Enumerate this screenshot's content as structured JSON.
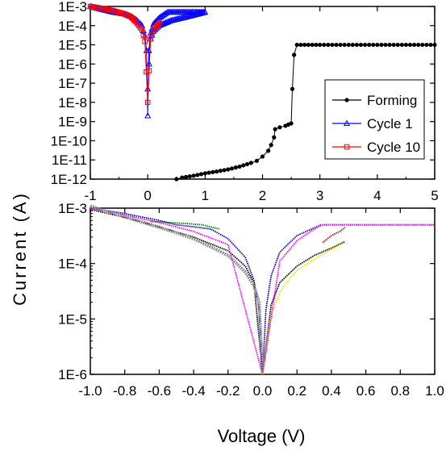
{
  "ylabel": "Current (A)",
  "xlabel": "Voltage (V)",
  "chart_data": [
    {
      "type": "line",
      "panel": "top",
      "ylabel": "Current (A)",
      "xlim": [
        -1,
        5
      ],
      "ylim": [
        1e-12,
        0.001
      ],
      "yscale": "log",
      "xticks": [
        "-1",
        "0",
        "1",
        "2",
        "3",
        "4",
        "5"
      ],
      "yticks": [
        "1E-12",
        "1E-11",
        "1E-10",
        "1E-9",
        "1E-8",
        "1E-7",
        "1E-6",
        "1E-5",
        "1E-4",
        "1E-3"
      ],
      "legend_position": "center-right",
      "series": [
        {
          "name": "Forming",
          "color": "#000000",
          "marker": "filled-circle",
          "x": [
            0.5,
            0.6,
            0.8,
            1.0,
            1.2,
            1.4,
            1.6,
            1.8,
            1.9,
            2.0,
            2.1,
            2.15,
            2.2,
            2.22,
            2.3,
            2.4,
            2.45,
            2.5,
            2.52,
            2.55,
            2.6,
            2.8,
            3.0,
            3.5,
            4.0,
            4.5,
            5.0
          ],
          "y": [
            1e-12,
            1.2e-12,
            1.5e-12,
            2e-12,
            2.5e-12,
            3.2e-12,
            4.5e-12,
            7e-12,
            9e-12,
            1.5e-11,
            3e-11,
            6e-11,
            1.5e-10,
            4e-10,
            5e-10,
            6e-10,
            7e-10,
            8e-10,
            5e-08,
            3e-06,
            1e-05,
            1e-05,
            1e-05,
            1e-05,
            1e-05,
            1e-05,
            1e-05
          ]
        },
        {
          "name": "Cycle 1",
          "color": "#0000ff",
          "marker": "open-triangle",
          "x": [
            -1.0,
            -0.8,
            -0.6,
            -0.4,
            -0.3,
            -0.2,
            -0.1,
            -0.05,
            -0.02,
            0.0,
            0.02,
            0.05,
            0.1,
            0.2,
            0.3,
            0.35,
            0.4,
            0.5,
            0.7,
            1.0,
            0.8,
            0.6,
            0.4,
            0.2,
            0.1,
            0.05,
            0.0
          ],
          "y": [
            0.001,
            0.0007,
            0.0005,
            0.0004,
            0.0003,
            0.0002,
            0.0001,
            3e-05,
            5e-06,
            2e-09,
            5e-06,
            4e-05,
            0.00012,
            0.00025,
            0.0004,
            0.0005,
            0.0005,
            0.0005,
            0.0005,
            0.0005,
            0.00035,
            0.00025,
            0.00018,
            0.0001,
            5e-05,
            2e-05,
            5e-08
          ]
        },
        {
          "name": "Cycle 10",
          "color": "#ff0000",
          "marker": "open-square",
          "x": [
            -1.0,
            -0.8,
            -0.6,
            -0.4,
            -0.3,
            -0.2,
            -0.1,
            -0.05,
            0.0,
            0.05,
            0.1,
            0.2
          ],
          "y": [
            0.001,
            0.0008,
            0.0006,
            0.0004,
            0.0003,
            0.00015,
            6e-05,
            1.5e-05,
            1e-08,
            2e-05,
            6e-05,
            0.00013
          ]
        }
      ]
    },
    {
      "type": "line",
      "panel": "bottom",
      "xlabel": "Voltage (V)",
      "xlim": [
        -1.0,
        1.0
      ],
      "ylim": [
        1e-06,
        0.001
      ],
      "yscale": "log",
      "xticks": [
        "-1.0",
        "-0.8",
        "-0.6",
        "-0.4",
        "-0.2",
        "0.0",
        "0.2",
        "0.4",
        "0.6",
        "0.8",
        "1.0"
      ],
      "yticks": [
        "1E-6",
        "1E-5",
        "1E-4",
        "1E-3"
      ],
      "series": [
        {
          "color": "#0000cc",
          "x": [
            -1.0,
            -0.8,
            -0.6,
            -0.5,
            -0.4,
            -0.3,
            -0.2,
            -0.1,
            -0.05,
            -0.02,
            0.0,
            0.02,
            0.05,
            0.1,
            0.2,
            0.3,
            0.34,
            0.5,
            0.7,
            1.0
          ],
          "y": [
            0.001,
            0.0008,
            0.0006,
            0.0005,
            0.00046,
            0.00042,
            0.00028,
            0.00013,
            5e-05,
            1.5e-05,
            1e-06,
            1.5e-05,
            6e-05,
            0.00016,
            0.00032,
            0.00044,
            0.0005,
            0.0005,
            0.0005,
            0.0005
          ]
        },
        {
          "color": "#000000",
          "x": [
            -1.0,
            -0.8,
            -0.6,
            -0.4,
            -0.2,
            -0.1,
            -0.05,
            0.0,
            0.05,
            0.1,
            0.2,
            0.3,
            0.4,
            0.48
          ],
          "y": [
            0.00095,
            0.00068,
            0.00046,
            0.0003,
            0.00017,
            9e-05,
            4.5e-05,
            1e-06,
            1.8e-05,
            4.5e-05,
            9e-05,
            0.00014,
            0.00019,
            0.00025
          ]
        },
        {
          "color": "#e8e800",
          "x": [
            0.0,
            0.05,
            0.1,
            0.15,
            0.2,
            0.3,
            0.4,
            0.47
          ],
          "y": [
            1e-06,
            1.2e-05,
            3e-05,
            5e-05,
            7.5e-05,
            0.00012,
            0.00018,
            0.00024
          ]
        },
        {
          "color": "#008000",
          "x": [
            -0.65,
            -0.55,
            -0.45,
            -0.35,
            -0.25
          ],
          "y": [
            0.00058,
            0.00055,
            0.00053,
            0.0005,
            0.00042
          ]
        },
        {
          "color": "#cc0000",
          "x": [
            0.35,
            0.4,
            0.45,
            0.48
          ],
          "y": [
            0.00024,
            0.00032,
            0.00038,
            0.00045
          ]
        },
        {
          "color": "#ff00ff",
          "x": [
            -1.0,
            -0.8,
            -0.6,
            -0.4,
            -0.2,
            0.0,
            0.1,
            0.2,
            0.3,
            0.35,
            0.6,
            1.0
          ],
          "y": [
            0.001,
            0.00075,
            0.00055,
            0.00038,
            0.00022,
            1e-06,
            0.00011,
            0.00026,
            0.00042,
            0.0005,
            0.0005,
            0.0005
          ]
        },
        {
          "color": "#909090",
          "x": [
            -1.0,
            -0.9,
            -0.8,
            -0.7,
            -0.6,
            -0.5,
            -0.4,
            -0.3,
            -0.2,
            -0.15,
            -0.1,
            -0.05,
            -0.02,
            0.0
          ],
          "y": [
            0.0011,
            0.00085,
            0.0007,
            0.00056,
            0.00045,
            0.00036,
            0.00028,
            0.0002,
            0.00014,
            0.0001,
            7e-05,
            4e-05,
            2e-05,
            1e-06
          ]
        }
      ]
    }
  ]
}
